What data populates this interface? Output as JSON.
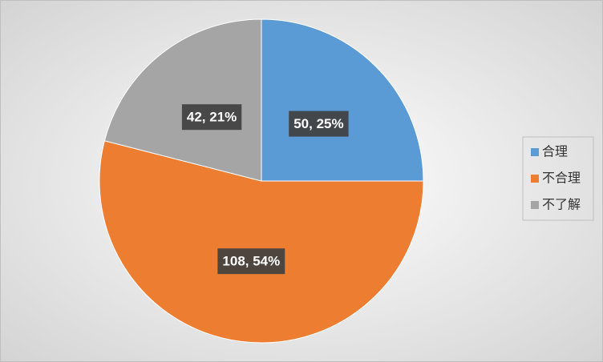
{
  "chart_data": {
    "type": "pie",
    "categories": [
      "合理",
      "不合理",
      "不了解"
    ],
    "values": [
      50,
      108,
      42
    ],
    "value_labels": [
      "50, 25%",
      "108, 54%",
      "42, 21%"
    ],
    "colors": [
      "#5b9bd5",
      "#ed7d31",
      "#a5a5a5"
    ],
    "legend": "right"
  }
}
